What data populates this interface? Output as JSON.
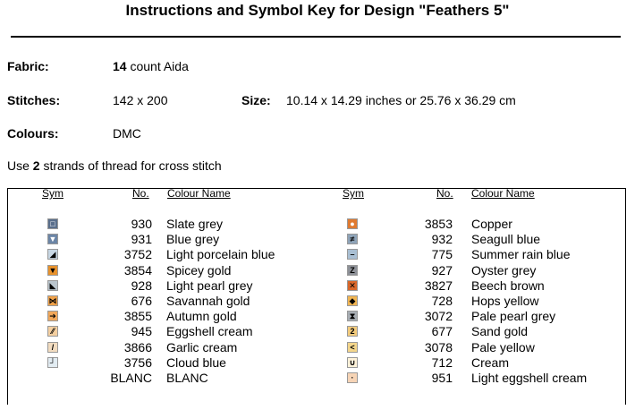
{
  "title": "Instructions and Symbol Key for Design \"Feathers 5\"",
  "fabric": {
    "label": "Fabric:",
    "count": "14",
    "rest": " count Aida"
  },
  "stitches": {
    "label": "Stitches:",
    "value": "142 x 200"
  },
  "size": {
    "label": "Size:",
    "value": "10.14 x 14.29 inches or 25.76 x 36.29 cm"
  },
  "colours": {
    "label": "Colours:",
    "value": "DMC"
  },
  "note": {
    "pre": "Use ",
    "strands": "2",
    "post": " strands of thread for cross stitch"
  },
  "headers": {
    "sym": "Sym",
    "no": "No.",
    "name": "Colour Name"
  },
  "left": [
    {
      "glyph": "□",
      "bg": "#5a6f8c",
      "fg": "#ffffff",
      "no": "930",
      "name": "Slate grey"
    },
    {
      "glyph": "▼",
      "bg": "#6b85a6",
      "fg": "#ffffff",
      "no": "931",
      "name": "Blue grey"
    },
    {
      "glyph": "◢",
      "bg": "#c8d7e4",
      "fg": "#000000",
      "no": "3752",
      "name": "Light porcelain blue"
    },
    {
      "glyph": "▼",
      "bg": "#e8922c",
      "fg": "#000000",
      "no": "3854",
      "name": "Spicey gold"
    },
    {
      "glyph": "◣",
      "bg": "#b9c4cc",
      "fg": "#000000",
      "no": "928",
      "name": "Light pearl grey"
    },
    {
      "glyph": "⋈",
      "bg": "#f0a24a",
      "fg": "#000000",
      "no": "676",
      "name": "Savannah gold"
    },
    {
      "glyph": "➔",
      "bg": "#f2a85a",
      "fg": "#000000",
      "no": "3855",
      "name": "Autumn gold"
    },
    {
      "glyph": "⁄⁄",
      "bg": "#f4cfa0",
      "fg": "#000000",
      "no": "945",
      "name": "Eggshell cream"
    },
    {
      "glyph": "/",
      "bg": "#f2dcc0",
      "fg": "#000000",
      "no": "3866",
      "name": "Garlic cream"
    },
    {
      "glyph": "┘",
      "bg": "#e2ecf2",
      "fg": "#000000",
      "no": "3756",
      "name": "Cloud blue"
    },
    {
      "glyph": "",
      "bg": "#ffffff",
      "fg": "#000000",
      "no": "BLANC",
      "name": "BLANC"
    }
  ],
  "right": [
    {
      "glyph": "●",
      "bg": "#e07a30",
      "fg": "#ffffff",
      "no": "3853",
      "name": "Copper"
    },
    {
      "glyph": "≠",
      "bg": "#8ea3b8",
      "fg": "#000000",
      "no": "932",
      "name": "Seagull blue"
    },
    {
      "glyph": "–",
      "bg": "#a9bfd3",
      "fg": "#000000",
      "no": "775",
      "name": "Summer rain blue"
    },
    {
      "glyph": "Z",
      "bg": "#8e9198",
      "fg": "#000000",
      "no": "927",
      "name": "Oyster grey"
    },
    {
      "glyph": "✕",
      "bg": "#d9672a",
      "fg": "#000000",
      "no": "3827",
      "name": "Beech brown"
    },
    {
      "glyph": "◆",
      "bg": "#f1b553",
      "fg": "#000000",
      "no": "728",
      "name": "Hops yellow"
    },
    {
      "glyph": "⧗",
      "bg": "#a8aeb4",
      "fg": "#000000",
      "no": "3072",
      "name": "Pale pearl grey"
    },
    {
      "glyph": "2",
      "bg": "#f3cb7c",
      "fg": "#000000",
      "no": "677",
      "name": "Sand gold"
    },
    {
      "glyph": "<",
      "bg": "#f4d68c",
      "fg": "#000000",
      "no": "3078",
      "name": "Pale yellow"
    },
    {
      "glyph": "∪",
      "bg": "#fff3da",
      "fg": "#000000",
      "no": "712",
      "name": "Cream"
    },
    {
      "glyph": "·",
      "bg": "#f6d4b6",
      "fg": "#000000",
      "no": "951",
      "name": "Light eggshell cream"
    }
  ]
}
